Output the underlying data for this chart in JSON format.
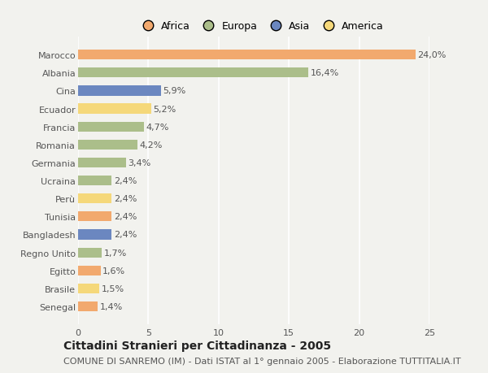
{
  "countries": [
    "Marocco",
    "Albania",
    "Cina",
    "Ecuador",
    "Francia",
    "Romania",
    "Germania",
    "Ucraina",
    "Perù",
    "Tunisia",
    "Bangladesh",
    "Regno Unito",
    "Egitto",
    "Brasile",
    "Senegal"
  ],
  "values": [
    24.0,
    16.4,
    5.9,
    5.2,
    4.7,
    4.2,
    3.4,
    2.4,
    2.4,
    2.4,
    2.4,
    1.7,
    1.6,
    1.5,
    1.4
  ],
  "labels": [
    "24,0%",
    "16,4%",
    "5,9%",
    "5,2%",
    "4,7%",
    "4,2%",
    "3,4%",
    "2,4%",
    "2,4%",
    "2,4%",
    "2,4%",
    "1,7%",
    "1,6%",
    "1,5%",
    "1,4%"
  ],
  "continents": [
    "Africa",
    "Europa",
    "Asia",
    "America",
    "Europa",
    "Europa",
    "Europa",
    "Europa",
    "America",
    "Africa",
    "Asia",
    "Europa",
    "Africa",
    "America",
    "Africa"
  ],
  "colors": {
    "Africa": "#F2A96E",
    "Europa": "#ABBE8A",
    "Asia": "#6B87C0",
    "America": "#F5D87A"
  },
  "xlim": [
    0,
    25
  ],
  "xticks": [
    0,
    5,
    10,
    15,
    20,
    25
  ],
  "title": "Cittadini Stranieri per Cittadinanza - 2005",
  "subtitle": "COMUNE DI SANREMO (IM) - Dati ISTAT al 1° gennaio 2005 - Elaborazione TUTTITALIA.IT",
  "background_color": "#F2F2EE",
  "grid_color": "#FFFFFF",
  "bar_height": 0.55,
  "title_fontsize": 10,
  "subtitle_fontsize": 8,
  "label_fontsize": 8,
  "tick_fontsize": 8,
  "legend_fontsize": 9
}
